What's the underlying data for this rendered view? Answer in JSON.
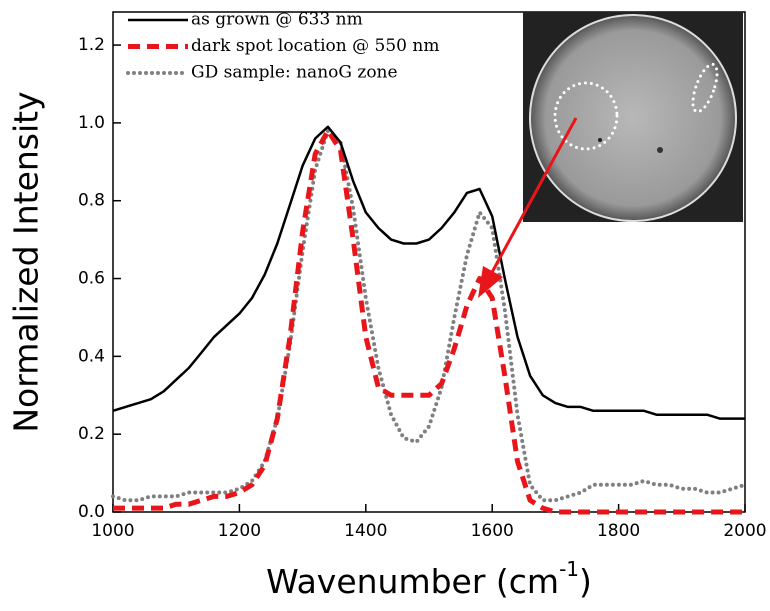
{
  "chart_data": {
    "type": "line",
    "xlabel": {
      "text": "Wavenumber (cm",
      "superscript": "-1",
      "suffix": ")"
    },
    "ylabel": "Normalized Intensity",
    "x": [
      1000,
      1020,
      1040,
      1060,
      1080,
      1100,
      1120,
      1140,
      1160,
      1180,
      1200,
      1220,
      1240,
      1260,
      1280,
      1300,
      1320,
      1340,
      1360,
      1380,
      1400,
      1420,
      1440,
      1460,
      1480,
      1500,
      1520,
      1540,
      1560,
      1580,
      1600,
      1620,
      1640,
      1660,
      1680,
      1700,
      1720,
      1740,
      1760,
      1780,
      1800,
      1820,
      1840,
      1860,
      1880,
      1900,
      1920,
      1940,
      1960,
      1980,
      2000
    ],
    "series": [
      {
        "name": "as grown @ 633 nm",
        "color": "#000000",
        "style": "solid",
        "values": [
          0.26,
          0.27,
          0.28,
          0.29,
          0.31,
          0.34,
          0.37,
          0.41,
          0.45,
          0.48,
          0.51,
          0.55,
          0.61,
          0.69,
          0.79,
          0.89,
          0.96,
          0.99,
          0.95,
          0.85,
          0.77,
          0.73,
          0.7,
          0.69,
          0.69,
          0.7,
          0.73,
          0.77,
          0.82,
          0.83,
          0.76,
          0.6,
          0.45,
          0.35,
          0.3,
          0.28,
          0.27,
          0.27,
          0.26,
          0.26,
          0.26,
          0.26,
          0.26,
          0.25,
          0.25,
          0.25,
          0.25,
          0.25,
          0.24,
          0.24,
          0.24
        ]
      },
      {
        "name": "dark spot location @ 550 nm",
        "color": "#e8161b",
        "style": "dashed",
        "values": [
          0.01,
          0.01,
          0.01,
          0.01,
          0.01,
          0.02,
          0.02,
          0.03,
          0.04,
          0.04,
          0.05,
          0.07,
          0.12,
          0.24,
          0.45,
          0.72,
          0.92,
          0.98,
          0.93,
          0.7,
          0.45,
          0.32,
          0.3,
          0.3,
          0.3,
          0.3,
          0.33,
          0.42,
          0.53,
          0.6,
          0.55,
          0.35,
          0.13,
          0.03,
          0.01,
          0,
          0,
          0,
          0,
          0,
          0,
          0,
          0,
          0,
          0,
          0,
          0,
          0,
          0,
          0,
          0
        ]
      },
      {
        "name": "GD sample: nanoG zone",
        "color": "#808080",
        "style": "dotted",
        "values": [
          0.04,
          0.03,
          0.03,
          0.04,
          0.04,
          0.04,
          0.05,
          0.05,
          0.05,
          0.05,
          0.06,
          0.08,
          0.13,
          0.24,
          0.43,
          0.67,
          0.88,
          0.98,
          0.95,
          0.78,
          0.55,
          0.37,
          0.25,
          0.19,
          0.18,
          0.22,
          0.32,
          0.5,
          0.66,
          0.77,
          0.73,
          0.52,
          0.25,
          0.07,
          0.03,
          0.03,
          0.04,
          0.05,
          0.07,
          0.07,
          0.07,
          0.07,
          0.08,
          0.07,
          0.07,
          0.06,
          0.06,
          0.05,
          0.05,
          0.06,
          0.07
        ]
      }
    ],
    "xlim": [
      1000,
      2000
    ],
    "xticks": [
      1000,
      1200,
      1400,
      1600,
      1800,
      2000
    ],
    "ylim": [
      0,
      1.285
    ],
    "yticks": [
      {
        "value": 0,
        "label": "0.0"
      },
      0.2,
      0.4,
      0.6,
      0.8,
      {
        "value": 1,
        "label": "1.0"
      },
      1.2
    ],
    "legend": "top-left"
  }
}
